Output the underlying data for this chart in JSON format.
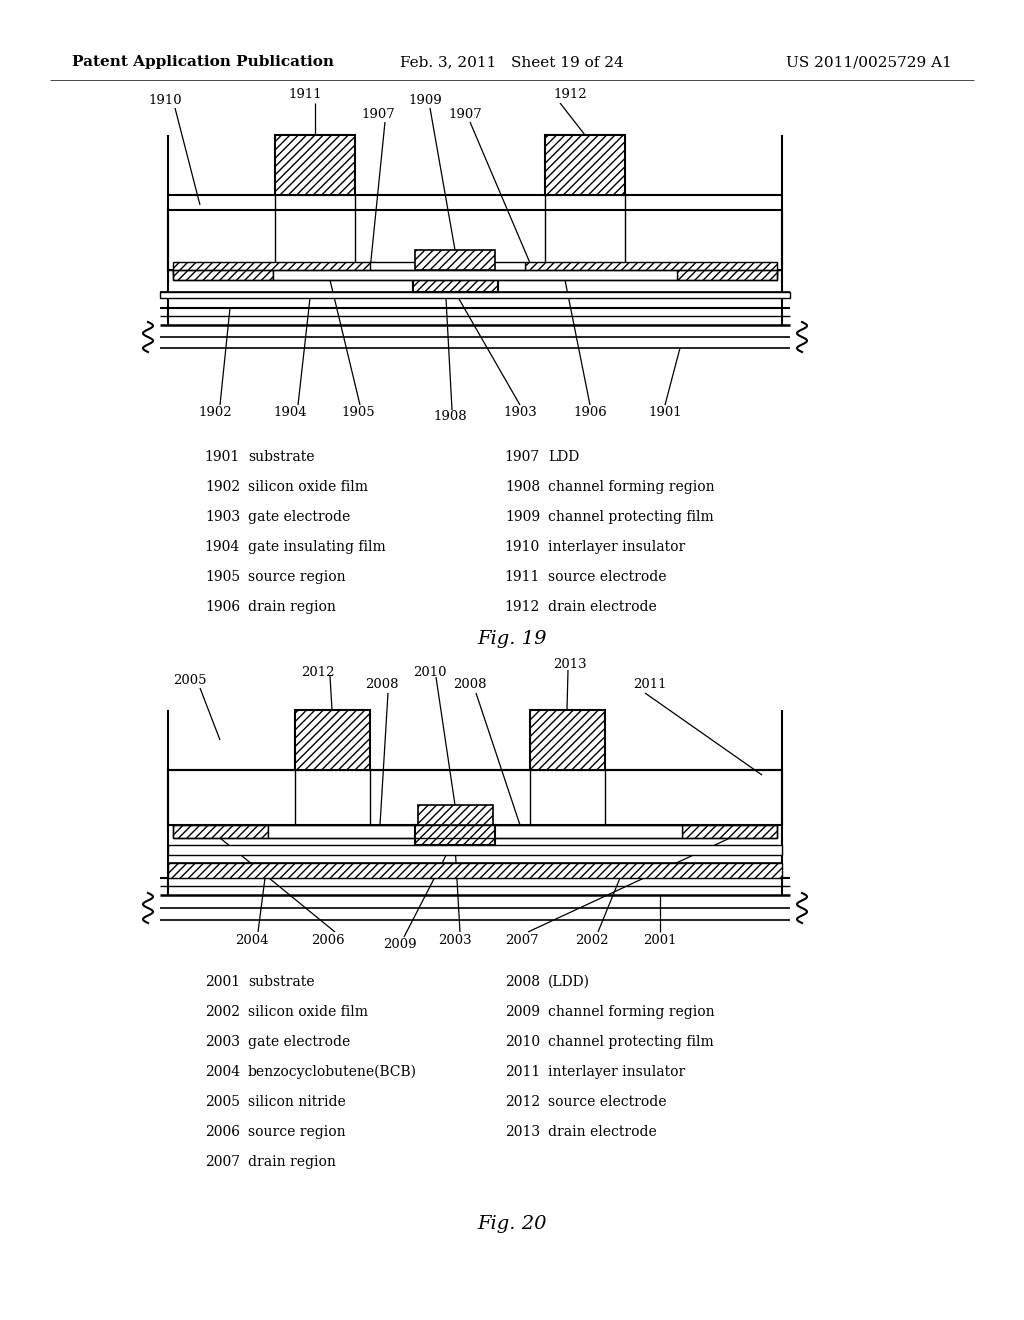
{
  "header_left": "Patent Application Publication",
  "header_mid": "Feb. 3, 2011   Sheet 19 of 24",
  "header_right": "US 2011/0025729 A1",
  "fig19_caption": "Fig. 19",
  "fig20_caption": "Fig. 20",
  "fig19_legend_left": [
    [
      "1901",
      "substrate"
    ],
    [
      "1902",
      "silicon oxide film"
    ],
    [
      "1903",
      "gate electrode"
    ],
    [
      "1904",
      "gate insulating film"
    ],
    [
      "1905",
      "source region"
    ],
    [
      "1906",
      "drain region"
    ]
  ],
  "fig19_legend_right": [
    [
      "1907",
      "LDD"
    ],
    [
      "1908",
      "channel forming region"
    ],
    [
      "1909",
      "channel protecting film"
    ],
    [
      "1910",
      "interlayer insulator"
    ],
    [
      "1911",
      "source electrode"
    ],
    [
      "1912",
      "drain electrode"
    ]
  ],
  "fig20_legend_left": [
    [
      "2001",
      "substrate"
    ],
    [
      "2002",
      "silicon oxide film"
    ],
    [
      "2003",
      "gate electrode"
    ],
    [
      "2004",
      "benzocyclobutene(BCB)"
    ],
    [
      "2005",
      "silicon nitride"
    ],
    [
      "2006",
      "source region"
    ],
    [
      "2007",
      "drain region"
    ]
  ],
  "fig20_legend_right": [
    [
      "2008",
      "(LDD)"
    ],
    [
      "2009",
      "channel forming region"
    ],
    [
      "2010",
      "channel protecting film"
    ],
    [
      "2011",
      "interlayer insulator"
    ],
    [
      "2012",
      "source electrode"
    ],
    [
      "2013",
      "drain electrode"
    ]
  ],
  "background": "#ffffff"
}
